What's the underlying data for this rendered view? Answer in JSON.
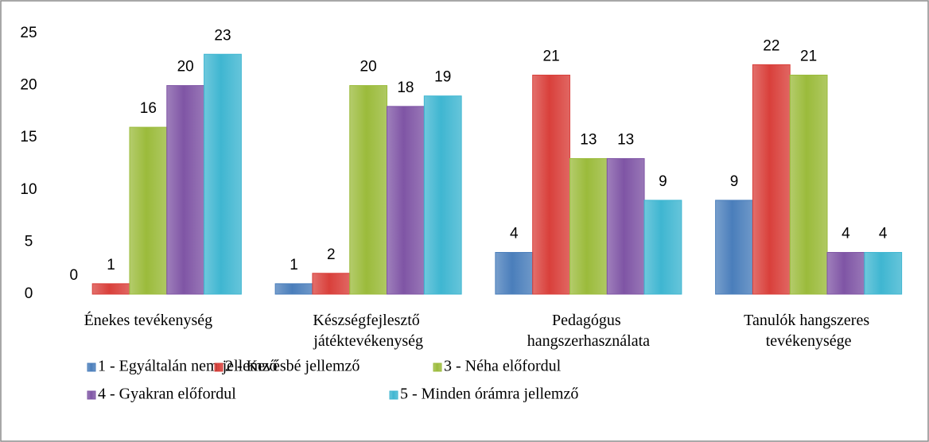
{
  "chart_data": {
    "type": "bar",
    "categories": [
      "Énekes tevékenység",
      "Készségfejlesztő játéktevékenység",
      "Pedagógus hangszerhasználata",
      "Tanulók hangszeres tevékenysége"
    ],
    "series": [
      {
        "name": "1 - Egyáltalán nem jellemző",
        "color": "#4a7ebb",
        "values": [
          0,
          1,
          4,
          9
        ]
      },
      {
        "name": "2 - Kevésbé jellemző",
        "color": "#d9403b",
        "values": [
          1,
          2,
          21,
          22
        ]
      },
      {
        "name": "3 - Néha előfordul",
        "color": "#9bbb3b",
        "values": [
          16,
          20,
          13,
          21
        ]
      },
      {
        "name": "4 - Gyakran előfordul",
        "color": "#7f55a5",
        "values": [
          20,
          18,
          13,
          4
        ]
      },
      {
        "name": "5 - Minden órámra jellemző",
        "color": "#3fb6d1",
        "values": [
          23,
          19,
          9,
          4
        ]
      }
    ],
    "ylim": [
      0,
      25
    ],
    "yticks": [
      0,
      5,
      10,
      15,
      20,
      25
    ],
    "grid": false,
    "legend": "bottom"
  }
}
